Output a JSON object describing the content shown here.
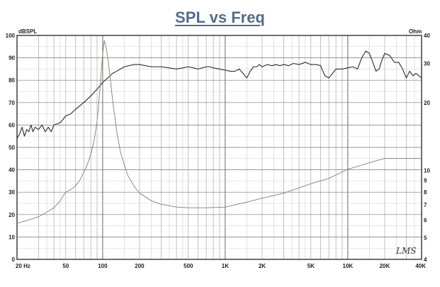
{
  "chart_data": {
    "type": "line",
    "title": "SPL vs Freq",
    "ylabel_left": "dBSPL",
    "ylabel_right": "Ohm",
    "x_scale": "log",
    "xlim": [
      20,
      40000
    ],
    "ylim_left": [
      0,
      100
    ],
    "ylim_right_log": [
      4,
      40
    ],
    "grid": true,
    "legend": "none",
    "x_tick_labels": [
      {
        "v": 20,
        "label": "20  Hz"
      },
      {
        "v": 50,
        "label": "50"
      },
      {
        "v": 100,
        "label": "100"
      },
      {
        "v": 200,
        "label": "200"
      },
      {
        "v": 500,
        "label": "500"
      },
      {
        "v": 1000,
        "label": "1K"
      },
      {
        "v": 2000,
        "label": "2K"
      },
      {
        "v": 5000,
        "label": "5K"
      },
      {
        "v": 10000,
        "label": "10K"
      },
      {
        "v": 20000,
        "label": "20K"
      },
      {
        "v": 40000,
        "label": "40K"
      }
    ],
    "y_left_ticks": [
      0,
      10,
      20,
      30,
      40,
      50,
      60,
      70,
      80,
      90,
      100
    ],
    "y_right_ticks": [
      {
        "v": 4,
        "label": "4"
      },
      {
        "v": 5,
        "label": "5"
      },
      {
        "v": 6,
        "label": "6"
      },
      {
        "v": 7,
        "label": "7"
      },
      {
        "v": 8,
        "label": "8"
      },
      {
        "v": 9,
        "label": "9"
      },
      {
        "v": 10,
        "label": "10"
      },
      {
        "v": 20,
        "label": "20"
      },
      {
        "v": 30,
        "label": "30"
      },
      {
        "v": 40,
        "label": "40"
      }
    ],
    "series": [
      {
        "axis": "left",
        "color": "#2a2a2a",
        "points": [
          [
            20,
            54
          ],
          [
            21,
            56
          ],
          [
            22,
            59
          ],
          [
            23,
            55
          ],
          [
            24,
            58
          ],
          [
            25,
            57
          ],
          [
            26,
            60
          ],
          [
            27,
            57
          ],
          [
            28,
            59
          ],
          [
            30,
            58
          ],
          [
            32,
            60
          ],
          [
            34,
            57
          ],
          [
            36,
            59
          ],
          [
            38,
            57
          ],
          [
            40,
            60
          ],
          [
            45,
            61
          ],
          [
            50,
            64
          ],
          [
            55,
            65
          ],
          [
            60,
            67
          ],
          [
            70,
            70
          ],
          [
            80,
            73
          ],
          [
            90,
            76
          ],
          [
            100,
            79
          ],
          [
            110,
            81
          ],
          [
            120,
            83
          ],
          [
            130,
            84
          ],
          [
            150,
            86
          ],
          [
            180,
            87
          ],
          [
            200,
            87
          ],
          [
            250,
            86
          ],
          [
            300,
            86
          ],
          [
            350,
            85.5
          ],
          [
            400,
            85
          ],
          [
            450,
            85.5
          ],
          [
            500,
            86
          ],
          [
            550,
            85.5
          ],
          [
            600,
            85
          ],
          [
            650,
            85.5
          ],
          [
            700,
            86
          ],
          [
            750,
            86
          ],
          [
            800,
            85.5
          ],
          [
            900,
            85
          ],
          [
            1000,
            84.5
          ],
          [
            1100,
            84
          ],
          [
            1200,
            84
          ],
          [
            1300,
            85
          ],
          [
            1400,
            83
          ],
          [
            1500,
            81
          ],
          [
            1600,
            84
          ],
          [
            1700,
            86
          ],
          [
            1800,
            86
          ],
          [
            1900,
            87
          ],
          [
            2000,
            86
          ],
          [
            2200,
            87
          ],
          [
            2400,
            86.5
          ],
          [
            2600,
            87
          ],
          [
            2800,
            86.5
          ],
          [
            3000,
            87
          ],
          [
            3300,
            86.5
          ],
          [
            3600,
            87.5
          ],
          [
            4000,
            87
          ],
          [
            4500,
            88
          ],
          [
            5000,
            87
          ],
          [
            5500,
            87
          ],
          [
            6000,
            86.5
          ],
          [
            6500,
            82
          ],
          [
            7000,
            81
          ],
          [
            7500,
            83
          ],
          [
            8000,
            85
          ],
          [
            9000,
            85
          ],
          [
            10000,
            85.5
          ],
          [
            11000,
            86
          ],
          [
            12000,
            85
          ],
          [
            13000,
            90
          ],
          [
            14000,
            93
          ],
          [
            15000,
            92
          ],
          [
            16000,
            88
          ],
          [
            17000,
            84
          ],
          [
            18000,
            85
          ],
          [
            19000,
            89
          ],
          [
            20000,
            92
          ],
          [
            22000,
            91
          ],
          [
            24000,
            88
          ],
          [
            26000,
            88
          ],
          [
            28000,
            85
          ],
          [
            30000,
            81
          ],
          [
            32000,
            84
          ],
          [
            34000,
            82
          ],
          [
            36000,
            83
          ],
          [
            38000,
            82
          ],
          [
            40000,
            81
          ]
        ]
      },
      {
        "axis": "right",
        "color": "#8a7a78",
        "points": [
          [
            20,
            5.8
          ],
          [
            25,
            6.0
          ],
          [
            30,
            6.2
          ],
          [
            35,
            6.5
          ],
          [
            40,
            6.8
          ],
          [
            45,
            7.3
          ],
          [
            50,
            8.0
          ],
          [
            55,
            8.2
          ],
          [
            60,
            8.5
          ],
          [
            65,
            9.0
          ],
          [
            70,
            9.8
          ],
          [
            75,
            10.6
          ],
          [
            80,
            11.8
          ],
          [
            85,
            13.5
          ],
          [
            90,
            16.5
          ],
          [
            95,
            23
          ],
          [
            100,
            33
          ],
          [
            103,
            38
          ],
          [
            106,
            36
          ],
          [
            110,
            32
          ],
          [
            115,
            26
          ],
          [
            120,
            21
          ],
          [
            130,
            15
          ],
          [
            140,
            12
          ],
          [
            160,
            9.5
          ],
          [
            180,
            8.5
          ],
          [
            200,
            7.9
          ],
          [
            250,
            7.3
          ],
          [
            300,
            7.05
          ],
          [
            400,
            6.85
          ],
          [
            500,
            6.8
          ],
          [
            700,
            6.8
          ],
          [
            1000,
            6.85
          ],
          [
            1500,
            7.2
          ],
          [
            2000,
            7.5
          ],
          [
            3000,
            7.9
          ],
          [
            5000,
            8.7
          ],
          [
            7000,
            9.2
          ],
          [
            10000,
            10.1
          ],
          [
            15000,
            10.8
          ],
          [
            20000,
            11.3
          ],
          [
            30000,
            11.3
          ],
          [
            40000,
            11.3
          ]
        ]
      }
    ]
  },
  "signature": "LMS"
}
